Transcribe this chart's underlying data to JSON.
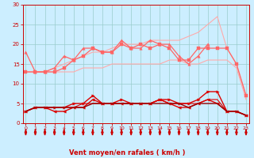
{
  "x": [
    0,
    1,
    2,
    3,
    4,
    5,
    6,
    7,
    8,
    9,
    10,
    11,
    12,
    13,
    14,
    15,
    16,
    17,
    18,
    19,
    20,
    21,
    22,
    23
  ],
  "series": [
    {
      "name": "upper_envelope",
      "color": "#ffaaaa",
      "linewidth": 0.8,
      "marker": null,
      "markersize": 0,
      "values": [
        13,
        13,
        13,
        14,
        15,
        16,
        17,
        18,
        18,
        19,
        20,
        20,
        20,
        21,
        21,
        21,
        21,
        22,
        23,
        25,
        27,
        19,
        15,
        7
      ]
    },
    {
      "name": "lower_envelope",
      "color": "#ffaaaa",
      "linewidth": 0.8,
      "marker": null,
      "markersize": 0,
      "values": [
        13,
        13,
        13,
        13,
        13,
        13,
        14,
        14,
        14,
        15,
        15,
        15,
        15,
        15,
        15,
        16,
        16,
        15,
        15,
        16,
        16,
        16,
        14,
        6
      ]
    },
    {
      "name": "max_gust",
      "color": "#ff6666",
      "linewidth": 0.9,
      "marker": "^",
      "markersize": 2.5,
      "values": [
        18,
        13,
        13,
        14,
        17,
        16,
        19,
        19,
        18,
        18,
        21,
        19,
        19,
        21,
        20,
        20,
        17,
        15,
        17,
        20,
        null,
        null,
        null,
        null
      ]
    },
    {
      "name": "avg_gust",
      "color": "#ff6666",
      "linewidth": 0.9,
      "marker": "s",
      "markersize": 2.5,
      "values": [
        13,
        13,
        13,
        13,
        14,
        16,
        17,
        19,
        18,
        18,
        20,
        19,
        20,
        19,
        20,
        19,
        16,
        16,
        19,
        19,
        19,
        19,
        15,
        7
      ]
    },
    {
      "name": "avg_wind",
      "color": "#dd0000",
      "linewidth": 1.0,
      "marker": ">",
      "markersize": 2.5,
      "values": [
        3,
        4,
        4,
        4,
        4,
        5,
        5,
        7,
        5,
        5,
        6,
        5,
        5,
        5,
        6,
        6,
        5,
        5,
        6,
        8,
        8,
        3,
        3,
        2
      ]
    },
    {
      "name": "min_wind",
      "color": "#dd0000",
      "linewidth": 1.0,
      "marker": "<",
      "markersize": 2.5,
      "values": [
        3,
        4,
        4,
        3,
        3,
        4,
        4,
        6,
        5,
        5,
        5,
        5,
        5,
        5,
        6,
        5,
        4,
        4,
        5,
        6,
        5,
        3,
        3,
        2
      ]
    },
    {
      "name": "mean_line",
      "color": "#dd0000",
      "linewidth": 0.8,
      "marker": null,
      "markersize": 0,
      "values": [
        3,
        4,
        4,
        4,
        4,
        4,
        5,
        5,
        5,
        5,
        5,
        5,
        5,
        5,
        6,
        5,
        5,
        5,
        5,
        6,
        6,
        3,
        3,
        2
      ]
    },
    {
      "name": "dark_line",
      "color": "#990000",
      "linewidth": 1.0,
      "marker": null,
      "markersize": 0,
      "values": [
        3,
        4,
        4,
        4,
        4,
        4,
        4,
        5,
        5,
        5,
        5,
        5,
        5,
        5,
        5,
        5,
        5,
        4,
        5,
        5,
        5,
        3,
        3,
        2
      ]
    }
  ],
  "xlim": [
    -0.3,
    23.3
  ],
  "ylim": [
    0,
    30
  ],
  "yticks": [
    0,
    5,
    10,
    15,
    20,
    25,
    30
  ],
  "xticks": [
    0,
    1,
    2,
    3,
    4,
    5,
    6,
    7,
    8,
    9,
    10,
    11,
    12,
    13,
    14,
    15,
    16,
    17,
    18,
    19,
    20,
    21,
    22,
    23
  ],
  "xlabel": "Vent moyen/en rafales ( km/h )",
  "bgcolor": "#cceeff",
  "grid_color": "#99cccc",
  "axis_color": "#cc0000",
  "label_color": "#cc0000",
  "arrow_color": "#cc0000"
}
